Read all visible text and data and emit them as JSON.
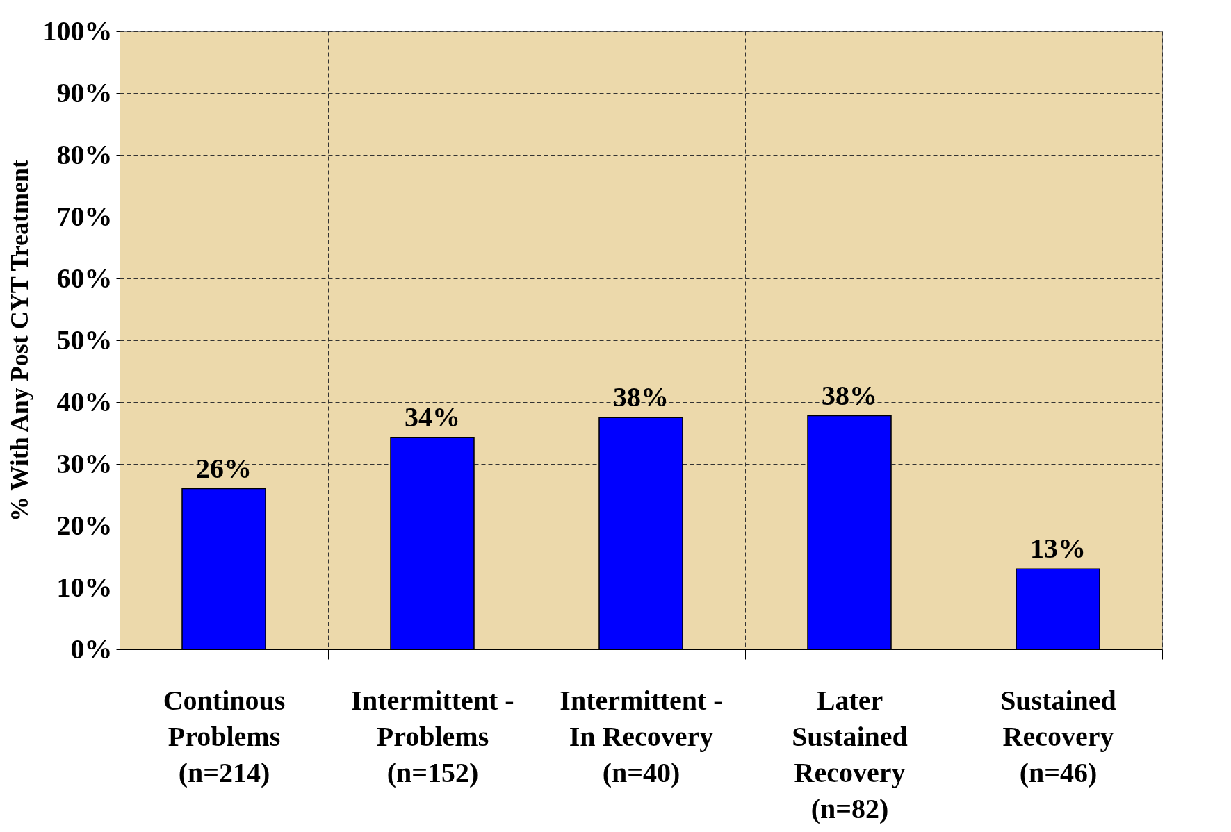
{
  "chart_data": {
    "type": "bar",
    "ylabel": "% With Any Post CYT Treatment",
    "categories": [
      "Continous\nProblems\n(n=214)",
      "Intermittent -\nProblems\n(n=152)",
      "Intermittent -\nIn Recovery\n(n=40)",
      "Later\nSustained\nRecovery\n(n=82)",
      "Sustained\nRecovery\n(n=46)"
    ],
    "values": [
      26,
      34.3,
      37.5,
      37.8,
      13
    ],
    "value_labels": [
      "26%",
      "34%",
      "38%",
      "38%",
      "13%"
    ],
    "color": "#0000ff",
    "ylim": [
      0,
      100
    ],
    "yticks": [
      {
        "value": 0,
        "label": "0%"
      },
      {
        "value": 10,
        "label": "10%"
      },
      {
        "value": 20,
        "label": "20%"
      },
      {
        "value": 30,
        "label": "30%"
      },
      {
        "value": 40,
        "label": "40%"
      },
      {
        "value": 50,
        "label": "50%"
      },
      {
        "value": 60,
        "label": "60%"
      },
      {
        "value": 70,
        "label": "70%"
      },
      {
        "value": 80,
        "label": "80%"
      },
      {
        "value": 90,
        "label": "90%"
      },
      {
        "value": 100,
        "label": "100%"
      }
    ],
    "grid": true
  }
}
